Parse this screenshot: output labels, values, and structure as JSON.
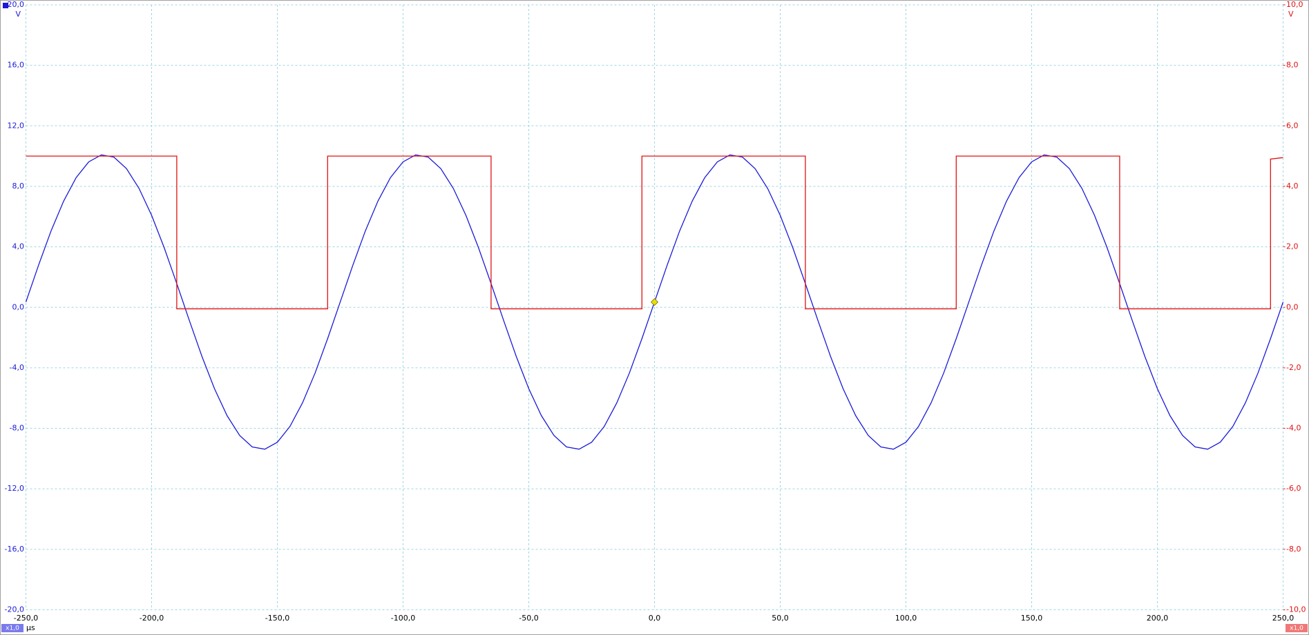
{
  "chart_data": {
    "type": "line",
    "ylabel": "V",
    "y2label": "V",
    "xlabel": "µs",
    "scale_labels": [
      "x1,0",
      "x1,0"
    ],
    "grid": true,
    "xlim": [
      -250,
      250
    ],
    "xticks": [
      {
        "value": -250,
        "label": "-250,0"
      },
      {
        "value": -200,
        "label": "-200,0"
      },
      {
        "value": -150,
        "label": "-150,0"
      },
      {
        "value": -100,
        "label": "-100,0"
      },
      {
        "value": -50,
        "label": "-50,0"
      },
      {
        "value": 0,
        "label": "0,0"
      },
      {
        "value": 50,
        "label": "50,0"
      },
      {
        "value": 100,
        "label": "100,0"
      },
      {
        "value": 150,
        "label": "150,0"
      },
      {
        "value": 200,
        "label": "200,0"
      },
      {
        "value": 250,
        "label": "250,0"
      }
    ],
    "ylim": [
      -20,
      20
    ],
    "yticks": [
      {
        "value": -20,
        "label": "-20,0"
      },
      {
        "value": -16,
        "label": "-16,0"
      },
      {
        "value": -12,
        "label": "-12,0"
      },
      {
        "value": -8,
        "label": "-8,0"
      },
      {
        "value": -4,
        "label": "-4,0"
      },
      {
        "value": 0,
        "label": "0,0"
      },
      {
        "value": 4,
        "label": "4,0"
      },
      {
        "value": 8,
        "label": "8,0"
      },
      {
        "value": 12,
        "label": "12,0"
      },
      {
        "value": 16,
        "label": "16,0"
      },
      {
        "value": 20,
        "label": "20,0"
      }
    ],
    "y2lim": [
      -10,
      10
    ],
    "y2ticks": [
      {
        "value": -10,
        "label": "-10,0"
      },
      {
        "value": -8,
        "label": "-8,0"
      },
      {
        "value": -6,
        "label": "-6,0"
      },
      {
        "value": -4,
        "label": "-4,0"
      },
      {
        "value": -2,
        "label": "-2,0"
      },
      {
        "value": 0,
        "label": "0,0"
      },
      {
        "value": 2,
        "label": "2,0"
      },
      {
        "value": 4,
        "label": "4,0"
      },
      {
        "value": 6,
        "label": "6,0"
      },
      {
        "value": 8,
        "label": "8,0"
      },
      {
        "value": 10,
        "label": "10,0"
      }
    ],
    "trigger": {
      "x": 0,
      "y": 0.35,
      "color": "#e8e000"
    },
    "series": [
      {
        "color": "#1a1ad8",
        "axis": "y",
        "x": [
          -250,
          -245,
          -240,
          -235,
          -230,
          -225,
          -220,
          -215,
          -210,
          -205,
          -200,
          -195,
          -190,
          -185,
          -180,
          -175,
          -170,
          -165,
          -160,
          -155,
          -150,
          -145,
          -140,
          -135,
          -130,
          -125,
          -120,
          -115,
          -110,
          -105,
          -100,
          -95,
          -90,
          -85,
          -80,
          -75,
          -70,
          -65,
          -60,
          -55,
          -50,
          -45,
          -40,
          -35,
          -30,
          -25,
          -20,
          -15,
          -10,
          -5,
          0,
          5,
          10,
          15,
          20,
          25,
          30,
          35,
          40,
          45,
          50,
          55,
          60,
          65,
          70,
          75,
          80,
          85,
          90,
          95,
          100,
          105,
          110,
          115,
          120,
          125,
          130,
          135,
          140,
          145,
          150,
          155,
          160,
          165,
          170,
          175,
          180,
          185,
          190,
          195,
          200,
          205,
          210,
          215,
          220,
          225,
          230,
          235,
          240,
          245,
          250
        ],
        "values": [
          0.35,
          2.77,
          5.05,
          7.02,
          8.58,
          9.62,
          10.08,
          9.93,
          9.17,
          7.86,
          6.08,
          3.94,
          1.57,
          -0.87,
          -3.24,
          -5.38,
          -7.16,
          -8.47,
          -9.23,
          -9.38,
          -8.92,
          -7.88,
          -6.32,
          -4.35,
          -2.07,
          0.35,
          2.77,
          5.05,
          7.02,
          8.58,
          9.62,
          10.08,
          9.93,
          9.17,
          7.86,
          6.08,
          3.94,
          1.57,
          -0.87,
          -3.24,
          -5.38,
          -7.16,
          -8.47,
          -9.23,
          -9.38,
          -8.92,
          -7.88,
          -6.32,
          -4.35,
          -2.07,
          0.35,
          2.77,
          5.05,
          7.02,
          8.58,
          9.62,
          10.08,
          9.93,
          9.17,
          7.86,
          6.08,
          3.94,
          1.57,
          -0.87,
          -3.24,
          -5.38,
          -7.16,
          -8.47,
          -9.23,
          -9.38,
          -8.92,
          -7.88,
          -6.32,
          -4.35,
          -2.07,
          0.35,
          2.77,
          5.05,
          7.02,
          8.58,
          9.62,
          10.08,
          9.93,
          9.17,
          7.86,
          6.08,
          3.94,
          1.57,
          -0.87,
          -3.24,
          -5.38,
          -7.16,
          -8.47,
          -9.23,
          -9.38,
          -8.92,
          -7.88,
          -6.32,
          -4.35,
          -2.07,
          0.35
        ]
      },
      {
        "color": "#e01010",
        "axis": "y2",
        "x": [
          -250,
          -190,
          -190,
          -130,
          -130,
          -65,
          -65,
          -5,
          -5,
          60,
          60,
          120,
          120,
          185,
          185,
          245,
          245,
          250
        ],
        "values": [
          5,
          5,
          -0.05,
          -0.05,
          5,
          5,
          -0.05,
          -0.05,
          5,
          5,
          -0.05,
          -0.05,
          5,
          5,
          -0.05,
          -0.05,
          4.9,
          4.95
        ]
      }
    ]
  }
}
